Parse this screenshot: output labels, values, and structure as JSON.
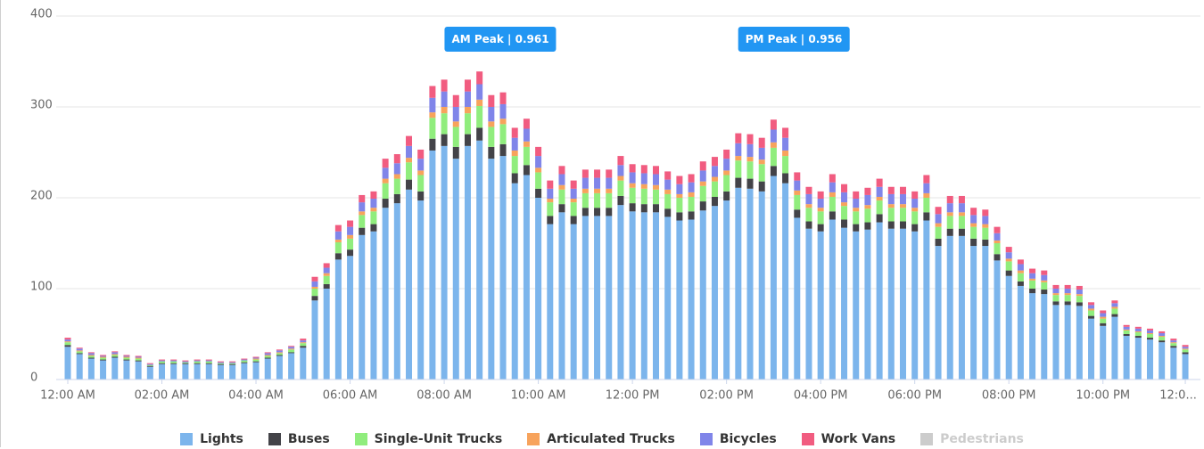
{
  "chart_data": {
    "type": "stacked_bar",
    "categories": [
      "12:00 AM",
      null,
      null,
      null,
      null,
      null,
      null,
      null,
      "02:00 AM",
      null,
      null,
      null,
      null,
      null,
      null,
      null,
      "04:00 AM",
      null,
      null,
      null,
      null,
      null,
      null,
      null,
      "06:00 AM",
      null,
      null,
      null,
      null,
      null,
      null,
      null,
      "08:00 AM",
      null,
      null,
      null,
      null,
      null,
      null,
      null,
      "10:00 AM",
      null,
      null,
      null,
      null,
      null,
      null,
      null,
      "12:00 PM",
      null,
      null,
      null,
      null,
      null,
      null,
      null,
      "02:00 PM",
      null,
      null,
      null,
      null,
      null,
      null,
      null,
      "04:00 PM",
      null,
      null,
      null,
      null,
      null,
      null,
      null,
      "06:00 PM",
      null,
      null,
      null,
      null,
      null,
      null,
      null,
      "08:00 PM",
      null,
      null,
      null,
      null,
      null,
      null,
      null,
      "10:00 PM",
      null,
      null,
      null,
      null,
      null,
      null,
      "12:0..."
    ],
    "series": [
      {
        "name": "Lights",
        "color": "#7cb5ec",
        "values": [
          36,
          28,
          23,
          21,
          24,
          21,
          20,
          14,
          17,
          17,
          17,
          17,
          17,
          16,
          16,
          18,
          19,
          23,
          26,
          29,
          35,
          87,
          100,
          132,
          136,
          159,
          163,
          189,
          194,
          209,
          197,
          252,
          257,
          243,
          257,
          263,
          243,
          246,
          216,
          225,
          200,
          171,
          184,
          171,
          180,
          180,
          180,
          192,
          185,
          184,
          184,
          179,
          175,
          176,
          186,
          191,
          197,
          211,
          210,
          207,
          224,
          216,
          178,
          166,
          163,
          176,
          167,
          163,
          165,
          173,
          166,
          166,
          163,
          175,
          147,
          158,
          158,
          147,
          147,
          131,
          114,
          103,
          95,
          94,
          82,
          82,
          81,
          67,
          59,
          69,
          48,
          46,
          44,
          41,
          35,
          28
        ]
      },
      {
        "name": "Buses",
        "color": "#434348",
        "values": [
          2,
          1,
          1,
          1,
          1,
          1,
          1,
          1,
          1,
          1,
          1,
          1,
          1,
          1,
          1,
          1,
          1,
          1,
          1,
          1,
          2,
          5,
          5,
          7,
          7,
          8,
          8,
          10,
          10,
          11,
          10,
          13,
          13,
          13,
          13,
          14,
          13,
          13,
          11,
          11,
          10,
          9,
          9,
          9,
          9,
          9,
          9,
          10,
          9,
          9,
          9,
          9,
          9,
          9,
          10,
          10,
          10,
          11,
          11,
          11,
          11,
          11,
          9,
          8,
          8,
          9,
          9,
          8,
          8,
          9,
          8,
          8,
          8,
          9,
          8,
          8,
          8,
          8,
          7,
          7,
          6,
          5,
          5,
          5,
          4,
          4,
          4,
          3,
          3,
          3,
          2,
          2,
          2,
          2,
          2,
          2
        ]
      },
      {
        "name": "Single-Unit Trucks",
        "color": "#90ed7d",
        "values": [
          3,
          2,
          2,
          2,
          2,
          2,
          2,
          1,
          2,
          2,
          1,
          2,
          2,
          1,
          1,
          2,
          2,
          2,
          2,
          3,
          3,
          8,
          9,
          12,
          12,
          14,
          14,
          17,
          17,
          19,
          18,
          23,
          23,
          22,
          23,
          24,
          22,
          22,
          19,
          20,
          18,
          15,
          16,
          15,
          16,
          16,
          16,
          17,
          17,
          17,
          16,
          16,
          16,
          16,
          17,
          17,
          18,
          19,
          19,
          19,
          20,
          19,
          16,
          15,
          14,
          16,
          15,
          14,
          15,
          15,
          15,
          15,
          14,
          16,
          13,
          14,
          14,
          13,
          13,
          12,
          10,
          9,
          9,
          8,
          7,
          7,
          7,
          6,
          5,
          6,
          4,
          4,
          4,
          4,
          3,
          3
        ]
      },
      {
        "name": "Articulated Trucks",
        "color": "#f7a35c",
        "values": [
          1,
          1,
          1,
          1,
          1,
          1,
          1,
          0,
          0,
          0,
          0,
          0,
          0,
          0,
          0,
          0,
          1,
          1,
          1,
          1,
          1,
          2,
          3,
          3,
          4,
          4,
          4,
          5,
          5,
          5,
          5,
          6,
          7,
          6,
          7,
          7,
          6,
          6,
          6,
          6,
          5,
          4,
          5,
          4,
          5,
          5,
          5,
          5,
          5,
          5,
          5,
          5,
          4,
          5,
          5,
          5,
          5,
          5,
          5,
          5,
          6,
          6,
          5,
          4,
          4,
          5,
          4,
          4,
          4,
          4,
          4,
          4,
          4,
          5,
          4,
          4,
          4,
          4,
          4,
          3,
          3,
          3,
          2,
          2,
          2,
          2,
          2,
          2,
          2,
          2,
          1,
          1,
          1,
          1,
          1,
          1
        ]
      },
      {
        "name": "Bicycles",
        "color": "#8085e9",
        "values": [
          2,
          2,
          2,
          1,
          2,
          1,
          1,
          1,
          1,
          1,
          1,
          1,
          1,
          1,
          1,
          1,
          1,
          2,
          2,
          2,
          2,
          6,
          6,
          9,
          9,
          10,
          10,
          12,
          12,
          13,
          13,
          16,
          17,
          16,
          17,
          17,
          16,
          16,
          14,
          14,
          13,
          11,
          12,
          11,
          12,
          12,
          12,
          12,
          12,
          12,
          12,
          11,
          11,
          11,
          12,
          12,
          13,
          14,
          14,
          13,
          14,
          14,
          11,
          11,
          10,
          11,
          11,
          10,
          11,
          11,
          11,
          11,
          10,
          11,
          10,
          10,
          10,
          9,
          9,
          8,
          7,
          7,
          6,
          6,
          5,
          5,
          5,
          4,
          4,
          4,
          3,
          3,
          3,
          3,
          2,
          2
        ]
      },
      {
        "name": "Work Vans",
        "color": "#f15c80",
        "values": [
          2,
          1,
          1,
          1,
          1,
          1,
          1,
          1,
          1,
          1,
          1,
          1,
          1,
          1,
          1,
          1,
          1,
          1,
          1,
          1,
          2,
          5,
          5,
          7,
          7,
          8,
          8,
          10,
          10,
          11,
          10,
          13,
          13,
          13,
          13,
          14,
          13,
          13,
          11,
          11,
          10,
          9,
          9,
          9,
          9,
          9,
          9,
          10,
          9,
          9,
          9,
          9,
          9,
          9,
          10,
          10,
          10,
          11,
          11,
          11,
          11,
          11,
          9,
          8,
          8,
          9,
          9,
          8,
          8,
          9,
          8,
          8,
          8,
          9,
          8,
          8,
          8,
          8,
          7,
          7,
          6,
          5,
          5,
          5,
          4,
          4,
          4,
          3,
          3,
          3,
          2,
          2,
          2,
          2,
          2,
          2
        ]
      },
      {
        "name": "Pedestrians",
        "color": "#cccccc",
        "hidden": true
      }
    ],
    "ylim": [
      0,
      400
    ],
    "yticks": [
      0,
      100,
      200,
      300,
      400
    ],
    "grid": true,
    "annotations": [
      "AM Peak | 0.961",
      "PM Peak | 0.956"
    ]
  }
}
